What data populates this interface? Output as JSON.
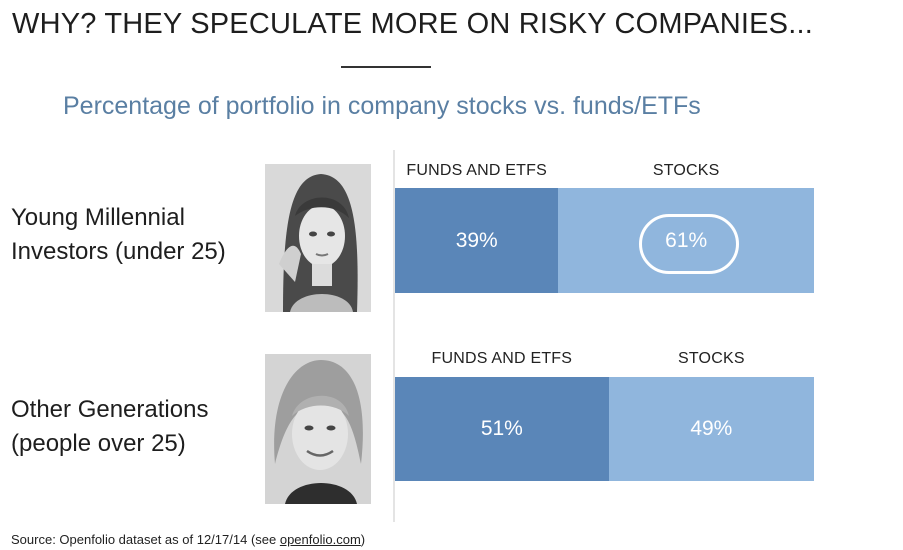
{
  "title": "WHY? THEY SPECULATE MORE ON RISKY COMPANIES...",
  "subtitle": "Percentage of portfolio in company stocks vs. funds/ETFs",
  "source": {
    "prefix": "Source: Openfolio dataset as of 12/17/14 (see ",
    "link": "openfolio.com",
    "suffix": ")"
  },
  "chart_data": {
    "type": "bar",
    "orientation": "horizontal",
    "stacked": true,
    "categories": [
      "Young Millennial Investors (under 25)",
      "Other Generations (people over 25)"
    ],
    "series": [
      {
        "name": "FUNDS AND ETFS",
        "values": [
          39,
          51
        ],
        "labels": [
          "39%",
          "51%"
        ],
        "color": "#5a86b8"
      },
      {
        "name": "STOCKS",
        "values": [
          61,
          49
        ],
        "labels": [
          "61%",
          "49%"
        ],
        "color": "#90b6dd"
      }
    ],
    "xlim": [
      0,
      100
    ],
    "unit": "%",
    "highlight": {
      "group": 0,
      "series": 1
    },
    "groups": [
      {
        "label_lines": [
          "Young Millennial",
          "Investors (under 25)"
        ],
        "photo": "portrait-photo-young-woman"
      },
      {
        "label_lines": [
          "Other Generations",
          "(people over 25)"
        ],
        "photo": "portrait-photo-older-woman"
      }
    ],
    "grid": false,
    "legend": "none"
  }
}
